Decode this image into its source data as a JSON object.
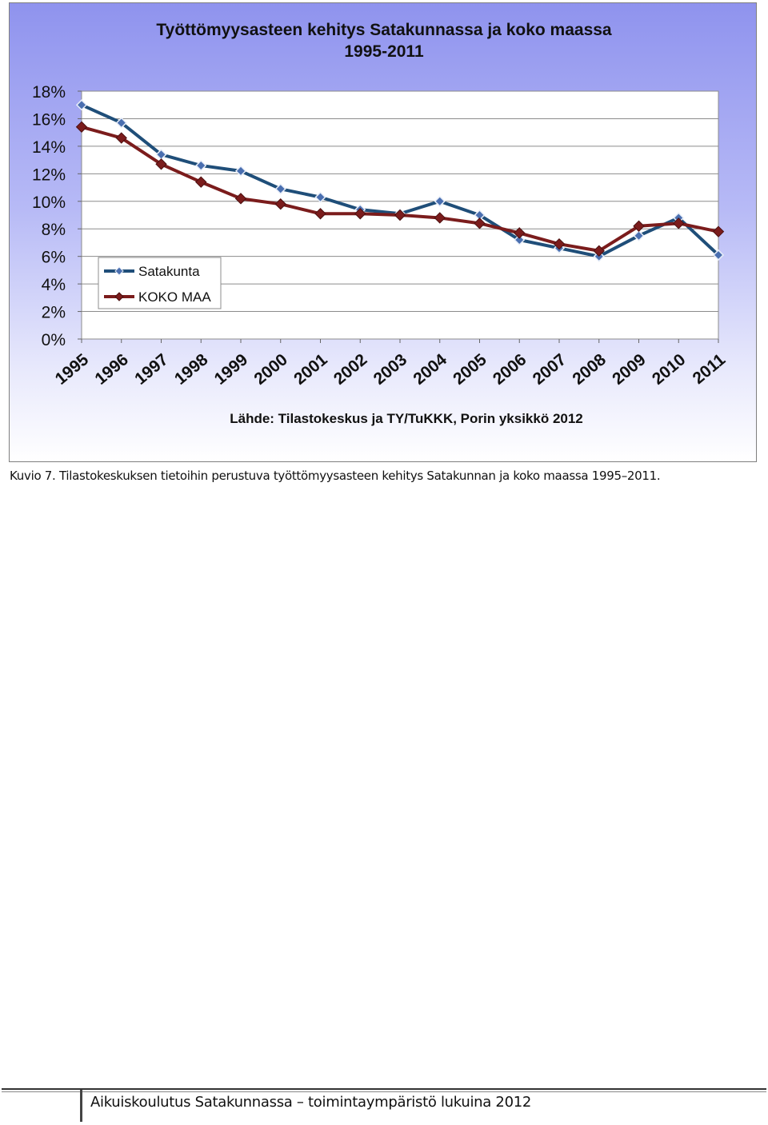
{
  "chart_data": {
    "type": "line",
    "title": [
      "Työttömyysasteen kehitys Satakunnassa ja koko maassa",
      "1995-2011"
    ],
    "source": "Lähde: Tilastokeskus ja TY/TuKKK, Porin yksikkö 2012",
    "categories": [
      "1995",
      "1996",
      "1997",
      "1998",
      "1999",
      "2000",
      "2001",
      "2002",
      "2003",
      "2004",
      "2005",
      "2006",
      "2007",
      "2008",
      "2009",
      "2010",
      "2011"
    ],
    "y_ticks": [
      "0%",
      "2%",
      "4%",
      "6%",
      "8%",
      "10%",
      "12%",
      "14%",
      "16%",
      "18%"
    ],
    "ylim": [
      0,
      18
    ],
    "grid": true,
    "legend_position": "bottom-left",
    "series": [
      {
        "name": "Satakunta",
        "color": "#1f4e79",
        "marker": "diamond",
        "values": [
          17.0,
          15.7,
          13.4,
          12.6,
          12.2,
          10.9,
          10.3,
          9.4,
          9.1,
          10.0,
          9.0,
          7.2,
          6.6,
          6.0,
          7.5,
          8.8,
          6.1
        ]
      },
      {
        "name": "KOKO MAA",
        "color": "#7b1c1c",
        "marker": "diamond",
        "values": [
          15.4,
          14.6,
          12.7,
          11.4,
          10.2,
          9.8,
          9.1,
          9.1,
          9.0,
          8.8,
          8.4,
          7.7,
          6.9,
          6.4,
          8.2,
          8.4,
          7.8
        ]
      }
    ]
  },
  "caption": "Kuvio 7. Tilastokeskuksen tietoihin perustuva työttömyysasteen kehitys Satakunnan ja koko maassa 1995–2011.",
  "footer": "Aikuiskoulutus Satakunnassa – toimintaympäristö lukuina 2012"
}
